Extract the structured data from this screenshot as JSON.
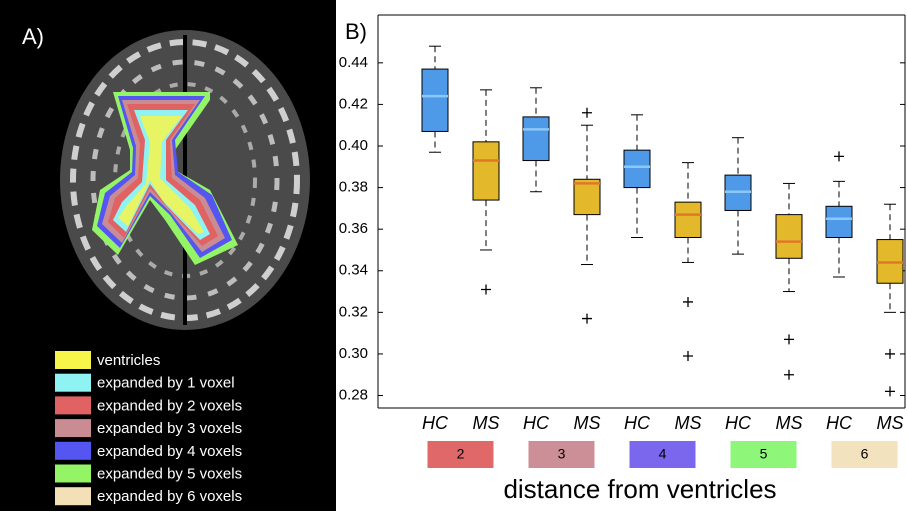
{
  "panel_a": {
    "label": "A)",
    "legend": [
      {
        "label": "ventricles",
        "color": "#f7f54a"
      },
      {
        "label": "expanded by 1 voxel",
        "color": "#8ff3f3"
      },
      {
        "label": "expanded by 2 voxels",
        "color": "#e06262"
      },
      {
        "label": "expanded by 3 voxels",
        "color": "#c98c92"
      },
      {
        "label": "expanded by 4 voxels",
        "color": "#5555f2"
      },
      {
        "label": "expanded by 5 voxels",
        "color": "#93f466"
      },
      {
        "label": "expanded by 6 voxels",
        "color": "#f3e0b6"
      }
    ]
  },
  "chart_data": {
    "type": "box",
    "panel_label": "B)",
    "xlabel": "distance from ventricles",
    "ylim": [
      0.274,
      0.463
    ],
    "yticks": [
      0.28,
      {
        "value": 0.3,
        "label": "0.30"
      },
      0.32,
      0.34,
      0.36,
      0.38,
      {
        "value": 0.4,
        "label": "0.40"
      },
      0.42,
      0.44
    ],
    "categories": [
      "HC",
      "MS",
      "HC",
      "MS",
      "HC",
      "MS",
      "HC",
      "MS",
      "HC",
      "MS"
    ],
    "groups": [
      {
        "label": "2",
        "color": "#e06868"
      },
      {
        "label": "3",
        "color": "#cc8f98"
      },
      {
        "label": "4",
        "color": "#7b66ee"
      },
      {
        "label": "5",
        "color": "#8ef77a"
      },
      {
        "label": "6",
        "color": "#f2e2bd"
      }
    ],
    "box_colors": [
      "#4f9ae8",
      "#e3b82a"
    ],
    "median_colors": [
      "#8cc8f7",
      "#e0782a"
    ],
    "boxes": [
      {
        "min": 0.397,
        "q1": 0.407,
        "median": 0.424,
        "q3": 0.437,
        "max": 0.448,
        "outliers": []
      },
      {
        "min": 0.35,
        "q1": 0.374,
        "median": 0.393,
        "q3": 0.402,
        "max": 0.427,
        "outliers": [
          0.331
        ]
      },
      {
        "min": 0.378,
        "q1": 0.393,
        "median": 0.408,
        "q3": 0.414,
        "max": 0.428,
        "outliers": []
      },
      {
        "min": 0.343,
        "q1": 0.367,
        "median": 0.382,
        "q3": 0.384,
        "max": 0.41,
        "outliers": [
          0.416,
          0.317
        ]
      },
      {
        "min": 0.356,
        "q1": 0.38,
        "median": 0.39,
        "q3": 0.398,
        "max": 0.415,
        "outliers": []
      },
      {
        "min": 0.344,
        "q1": 0.356,
        "median": 0.367,
        "q3": 0.373,
        "max": 0.392,
        "outliers": [
          0.325,
          0.299
        ]
      },
      {
        "min": 0.348,
        "q1": 0.369,
        "median": 0.378,
        "q3": 0.386,
        "max": 0.404,
        "outliers": []
      },
      {
        "min": 0.33,
        "q1": 0.346,
        "median": 0.354,
        "q3": 0.367,
        "max": 0.382,
        "outliers": [
          0.307,
          0.29
        ]
      },
      {
        "min": 0.337,
        "q1": 0.356,
        "median": 0.365,
        "q3": 0.371,
        "max": 0.383,
        "outliers": [
          0.395
        ]
      },
      {
        "min": 0.32,
        "q1": 0.334,
        "median": 0.344,
        "q3": 0.355,
        "max": 0.372,
        "outliers": [
          0.3,
          0.282
        ]
      }
    ]
  }
}
